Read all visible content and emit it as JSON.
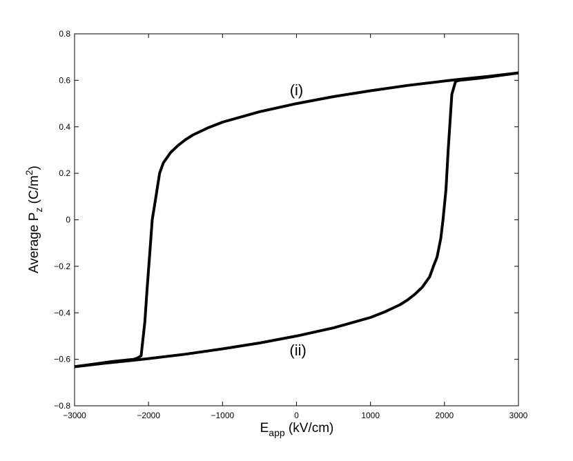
{
  "chart_data": {
    "type": "line",
    "title": "",
    "xlabel": {
      "main": "E",
      "sub": "app",
      "rest": " (kV/cm)"
    },
    "ylabel": {
      "main": "Average P",
      "sub": "z",
      "rest": " (C/m",
      "sup": "2",
      "end": ")"
    },
    "xlim": [
      -3000,
      3000
    ],
    "ylim": [
      -0.8,
      0.8
    ],
    "xticks": [
      -3000,
      -2000,
      -1000,
      0,
      1000,
      2000,
      3000
    ],
    "yticks": [
      -0.8,
      -0.6,
      -0.4,
      -0.2,
      0,
      0.2,
      0.4,
      0.6,
      0.8
    ],
    "xtick_labels": [
      "−3000",
      "−2000",
      "−1000",
      "0",
      "1000",
      "2000",
      "3000"
    ],
    "ytick_labels": [
      "−0.8",
      "−0.6",
      "−0.4",
      "−0.2",
      "0",
      "0.2",
      "0.4",
      "0.6",
      "0.8"
    ],
    "grid": false,
    "series": [
      {
        "name": "(i)",
        "color": "#000000",
        "x": [
          -3000,
          -2500,
          -2200,
          -2150,
          -2100,
          -2050,
          -2020,
          -1980,
          -1950,
          -1900,
          -1850,
          -1800,
          -1700,
          -1600,
          -1500,
          -1400,
          -1200,
          -1000,
          -500,
          0,
          500,
          1000,
          1500,
          2000,
          2200,
          2600,
          3000
        ],
        "y": [
          -0.632,
          -0.61,
          -0.6,
          -0.595,
          -0.585,
          -0.44,
          -0.3,
          -0.13,
          0.0,
          0.1,
          0.2,
          0.245,
          0.29,
          0.32,
          0.345,
          0.365,
          0.395,
          0.42,
          0.465,
          0.5,
          0.53,
          0.555,
          0.578,
          0.597,
          0.604,
          0.617,
          0.632
        ]
      },
      {
        "name": "(ii)",
        "color": "#000000",
        "x": [
          -3000,
          -2600,
          -2200,
          -2000,
          -1500,
          -1000,
          -500,
          0,
          500,
          1000,
          1200,
          1400,
          1500,
          1600,
          1700,
          1800,
          1850,
          1900,
          1950,
          1980,
          2020,
          2050,
          2100,
          2150,
          2200,
          2500,
          3000
        ],
        "y": [
          -0.632,
          -0.617,
          -0.604,
          -0.597,
          -0.578,
          -0.555,
          -0.53,
          -0.5,
          -0.465,
          -0.42,
          -0.395,
          -0.365,
          -0.345,
          -0.32,
          -0.29,
          -0.245,
          -0.2,
          -0.16,
          -0.08,
          0.0,
          0.13,
          0.3,
          0.54,
          0.595,
          0.6,
          0.61,
          0.632
        ]
      }
    ],
    "annotations": [
      {
        "text": "(i)",
        "x": 0,
        "y": 0.56
      },
      {
        "text": "(ii)",
        "x": 20,
        "y": -0.56
      }
    ]
  }
}
